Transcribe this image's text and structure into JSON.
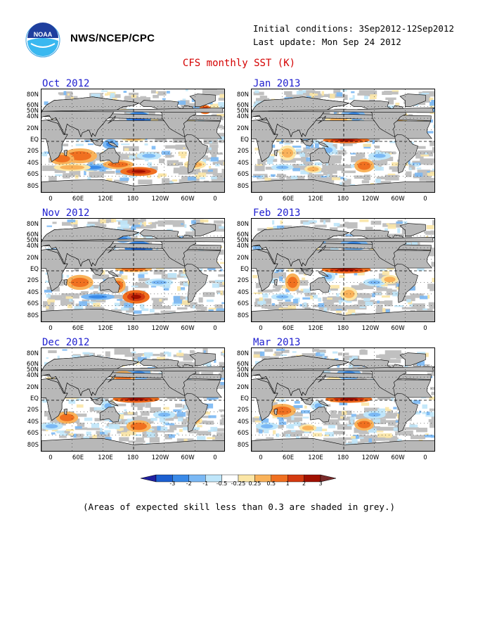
{
  "header": {
    "org": "NWS/NCEP/CPC",
    "initial_conditions": "Initial conditions: 3Sep2012-12Sep2012",
    "last_update": "Last update: Mon Sep 24 2012",
    "title": "CFS monthly SST (K)"
  },
  "panels": [
    {
      "title": "Oct 2012"
    },
    {
      "title": "Jan 2013"
    },
    {
      "title": "Nov 2012"
    },
    {
      "title": "Feb 2013"
    },
    {
      "title": "Dec 2012"
    },
    {
      "title": "Mar 2013"
    }
  ],
  "axes": {
    "lat_labels": [
      "80N",
      "60N",
      "50N",
      "40N",
      "20N",
      "EQ",
      "20S",
      "40S",
      "60S",
      "80S"
    ],
    "lon_labels": [
      "0",
      "60E",
      "120E",
      "180",
      "120W",
      "60W",
      "0"
    ]
  },
  "colorbar": {
    "labels": [
      "-3",
      "-2",
      "-1",
      "-0.5",
      "-0.25",
      "0.25",
      "0.5",
      "1",
      "2",
      "3"
    ],
    "colors": [
      "#2020a0",
      "#1c5fd0",
      "#3a8ae8",
      "#7ab8f4",
      "#bfe6fa",
      "#ffffff",
      "#fbe6a6",
      "#f9b25a",
      "#f07020",
      "#d43a10",
      "#a01000",
      "#7a2a2a"
    ]
  },
  "footnote": "(Areas of expected skill less than 0.3 are shaded in grey.)"
}
